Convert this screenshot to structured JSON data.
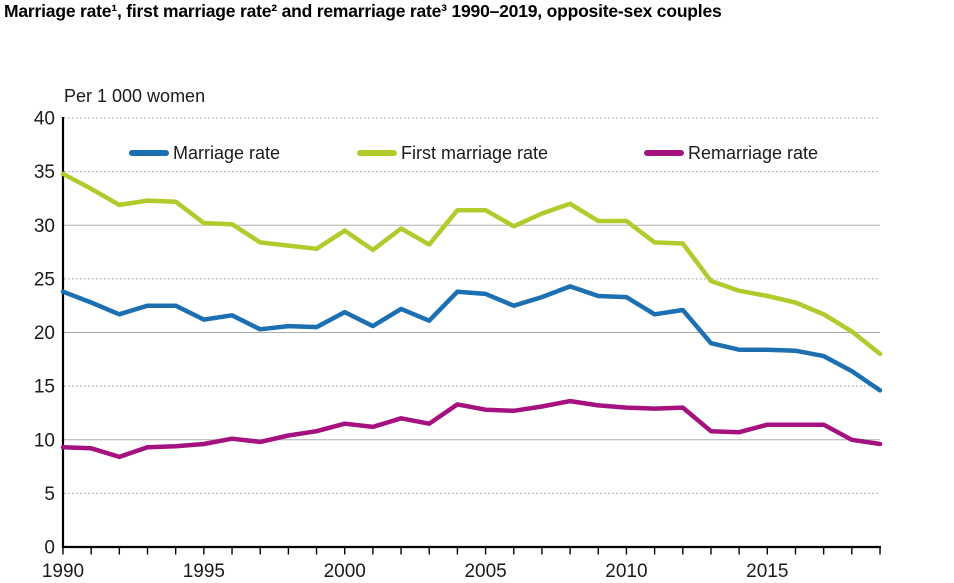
{
  "title": "Marriage rate¹, first marriage rate² and remarriage rate³ 1990–2019, opposite-sex couples",
  "unit_label": "Per 1 000 women",
  "chart_data": {
    "type": "line",
    "title": "Marriage rate¹, first marriage rate² and remarriage rate³ 1990–2019, opposite-sex couples",
    "ylabel": "Per 1 000 women",
    "ylim": [
      0,
      40
    ],
    "y_ticks": [
      0,
      5,
      10,
      15,
      20,
      25,
      30,
      35,
      40
    ],
    "x_tick_labels": [
      1990,
      1995,
      2000,
      2005,
      2010,
      2015
    ],
    "x": [
      1990,
      1991,
      1992,
      1993,
      1994,
      1995,
      1996,
      1997,
      1998,
      1999,
      2000,
      2001,
      2002,
      2003,
      2004,
      2005,
      2006,
      2007,
      2008,
      2009,
      2010,
      2011,
      2012,
      2013,
      2014,
      2015,
      2016,
      2017,
      2018,
      2019
    ],
    "grid": "horizontal, dotted at 5/15/25/35/40, solid at 10/20/30",
    "legend_position": "top-inside",
    "series": [
      {
        "name": "Marriage rate",
        "color": "#1c6fb1",
        "values": [
          23.8,
          22.8,
          21.7,
          22.5,
          22.5,
          21.2,
          21.6,
          20.3,
          20.6,
          20.5,
          21.9,
          20.6,
          22.2,
          21.1,
          23.8,
          23.6,
          22.5,
          23.3,
          24.3,
          23.4,
          23.3,
          21.7,
          22.1,
          19.0,
          18.4,
          18.4,
          18.3,
          17.8,
          16.4,
          14.6
        ]
      },
      {
        "name": "First marriage rate",
        "color": "#b0cb2c",
        "values": [
          34.8,
          33.4,
          31.9,
          32.3,
          32.2,
          30.2,
          30.1,
          28.4,
          28.1,
          27.8,
          29.5,
          27.7,
          29.7,
          28.2,
          31.4,
          31.4,
          29.9,
          31.1,
          32.0,
          30.4,
          30.4,
          28.4,
          28.3,
          24.8,
          23.9,
          23.4,
          22.8,
          21.7,
          20.1,
          18.0
        ]
      },
      {
        "name": "Remarriage rate",
        "color": "#a5117e",
        "values": [
          9.3,
          9.2,
          8.4,
          9.3,
          9.4,
          9.6,
          10.1,
          9.8,
          10.4,
          10.8,
          11.5,
          11.2,
          12.0,
          11.5,
          13.3,
          12.8,
          12.7,
          13.1,
          13.6,
          13.2,
          13.0,
          12.9,
          13.0,
          10.8,
          10.7,
          11.4,
          11.4,
          11.4,
          10.0,
          9.6
        ]
      }
    ]
  }
}
